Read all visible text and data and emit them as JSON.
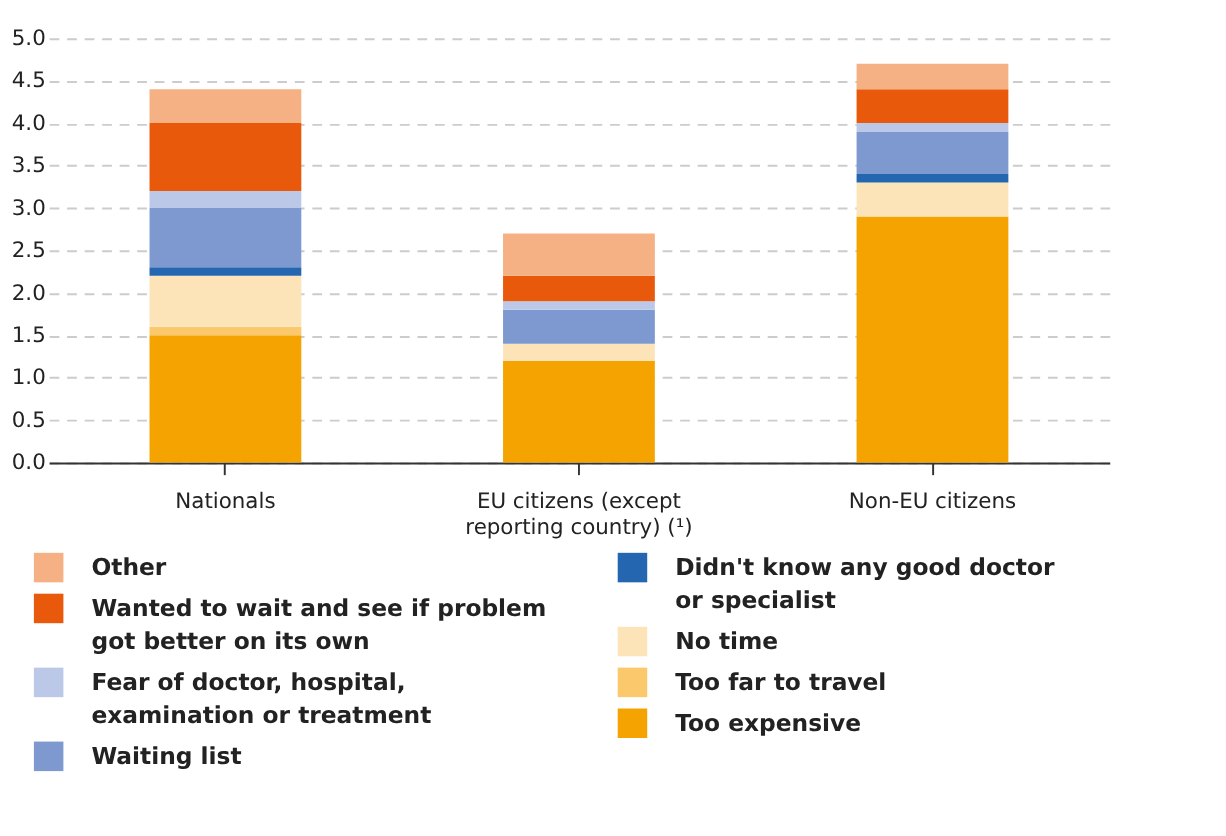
{
  "chart_data": {
    "type": "bar",
    "stacked": true,
    "categories": [
      "Nationals",
      "EU citizens (except reporting country) (¹)",
      "Non-EU citizens"
    ],
    "series": [
      {
        "name": "Too expensive",
        "color": "#f4a300",
        "values": [
          1.5,
          1.2,
          2.9
        ]
      },
      {
        "name": "Too far to travel",
        "color": "#fbc86b",
        "values": [
          0.1,
          0.0,
          0.0
        ]
      },
      {
        "name": "No time",
        "color": "#fde3b8",
        "values": [
          0.6,
          0.2,
          0.4
        ]
      },
      {
        "name": "Didn't know any good doctor or specialist",
        "color": "#2566b0",
        "values": [
          0.1,
          0.0,
          0.1
        ]
      },
      {
        "name": "Waiting list",
        "color": "#7d99cf",
        "values": [
          0.7,
          0.4,
          0.5
        ]
      },
      {
        "name": "Fear of doctor, hospital, examination or treatment",
        "color": "#bcc8e8",
        "values": [
          0.2,
          0.1,
          0.1
        ]
      },
      {
        "name": "Wanted to wait and see if problem got better on its own",
        "color": "#e8590c",
        "values": [
          0.8,
          0.3,
          0.4
        ]
      },
      {
        "name": "Other",
        "color": "#f5b183",
        "values": [
          0.4,
          0.5,
          0.3
        ]
      }
    ],
    "ylim": [
      0,
      5
    ],
    "yticks": [
      {
        "value": 0,
        "label": "0.0"
      },
      0.5,
      {
        "value": 1,
        "label": "1.0"
      },
      1.5,
      {
        "value": 2,
        "label": "2.0"
      },
      2.5,
      {
        "value": 3,
        "label": "3.0"
      },
      3.5,
      {
        "value": 4,
        "label": "4.0"
      },
      4.5,
      {
        "value": 5,
        "label": "5.0"
      }
    ],
    "grid": "y",
    "legend": "bottom"
  }
}
